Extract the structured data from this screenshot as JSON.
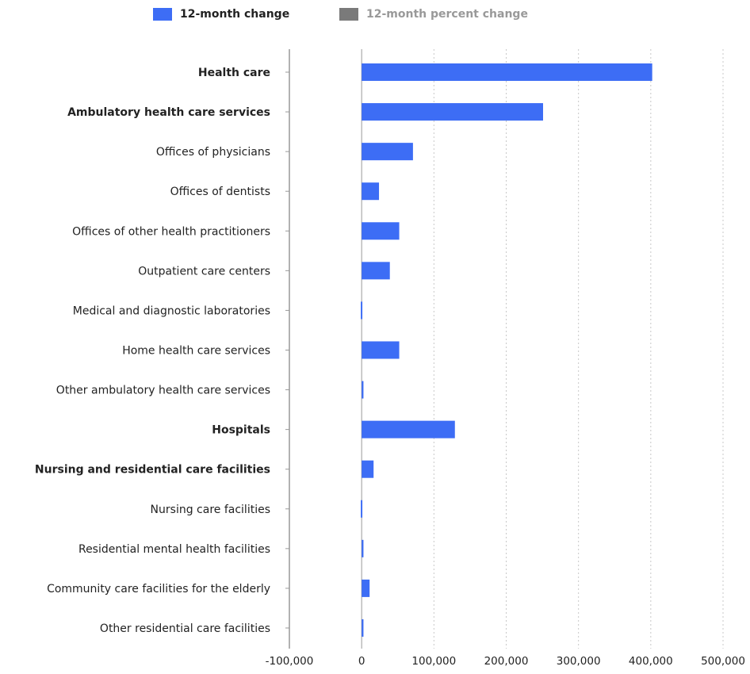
{
  "legend": {
    "items": [
      {
        "label": "12-month change",
        "color": "#3d6df5",
        "active": true
      },
      {
        "label": "12-month percent change",
        "color": "#7a7a7a",
        "active": false
      }
    ]
  },
  "colors": {
    "bar": "#3d6df5",
    "highlight_label": "#a01e28",
    "label": "#222222",
    "grid": "#c8c8c8",
    "axis": "#999999",
    "legend_inactive_text": "#999999"
  },
  "chart_data": {
    "type": "bar",
    "orientation": "horizontal",
    "categories": [
      "Health care",
      "Ambulatory health care services",
      "Offices of physicians",
      "Offices of dentists",
      "Offices of other health practitioners",
      "Outpatient care centers",
      "Medical and diagnostic laboratories",
      "Home health care services",
      "Other ambulatory health care services",
      "Hospitals",
      "Nursing and residential care facilities",
      "Nursing care facilities",
      "Residential mental health facilities",
      "Community care facilities for the elderly",
      "Other residential care facilities"
    ],
    "category_styles": [
      "highlight",
      "bold",
      "normal",
      "normal",
      "normal",
      "normal",
      "normal",
      "normal",
      "normal",
      "bold",
      "bold",
      "normal",
      "normal",
      "normal",
      "normal"
    ],
    "series": [
      {
        "name": "12-month change",
        "values": [
          402000,
          251000,
          71000,
          24000,
          52000,
          39000,
          -1200,
          52000,
          2500,
          129000,
          16500,
          -1200,
          2500,
          11000,
          2500
        ]
      }
    ],
    "xlim": [
      -100000,
      500000
    ],
    "xticks": [
      -100000,
      0,
      100000,
      200000,
      300000,
      400000,
      500000
    ],
    "xtick_labels": [
      "-100,000",
      "0",
      "100,000",
      "200,000",
      "300,000",
      "400,000",
      "500,000"
    ],
    "grid": "vertical dotted",
    "legend_position": "top"
  }
}
